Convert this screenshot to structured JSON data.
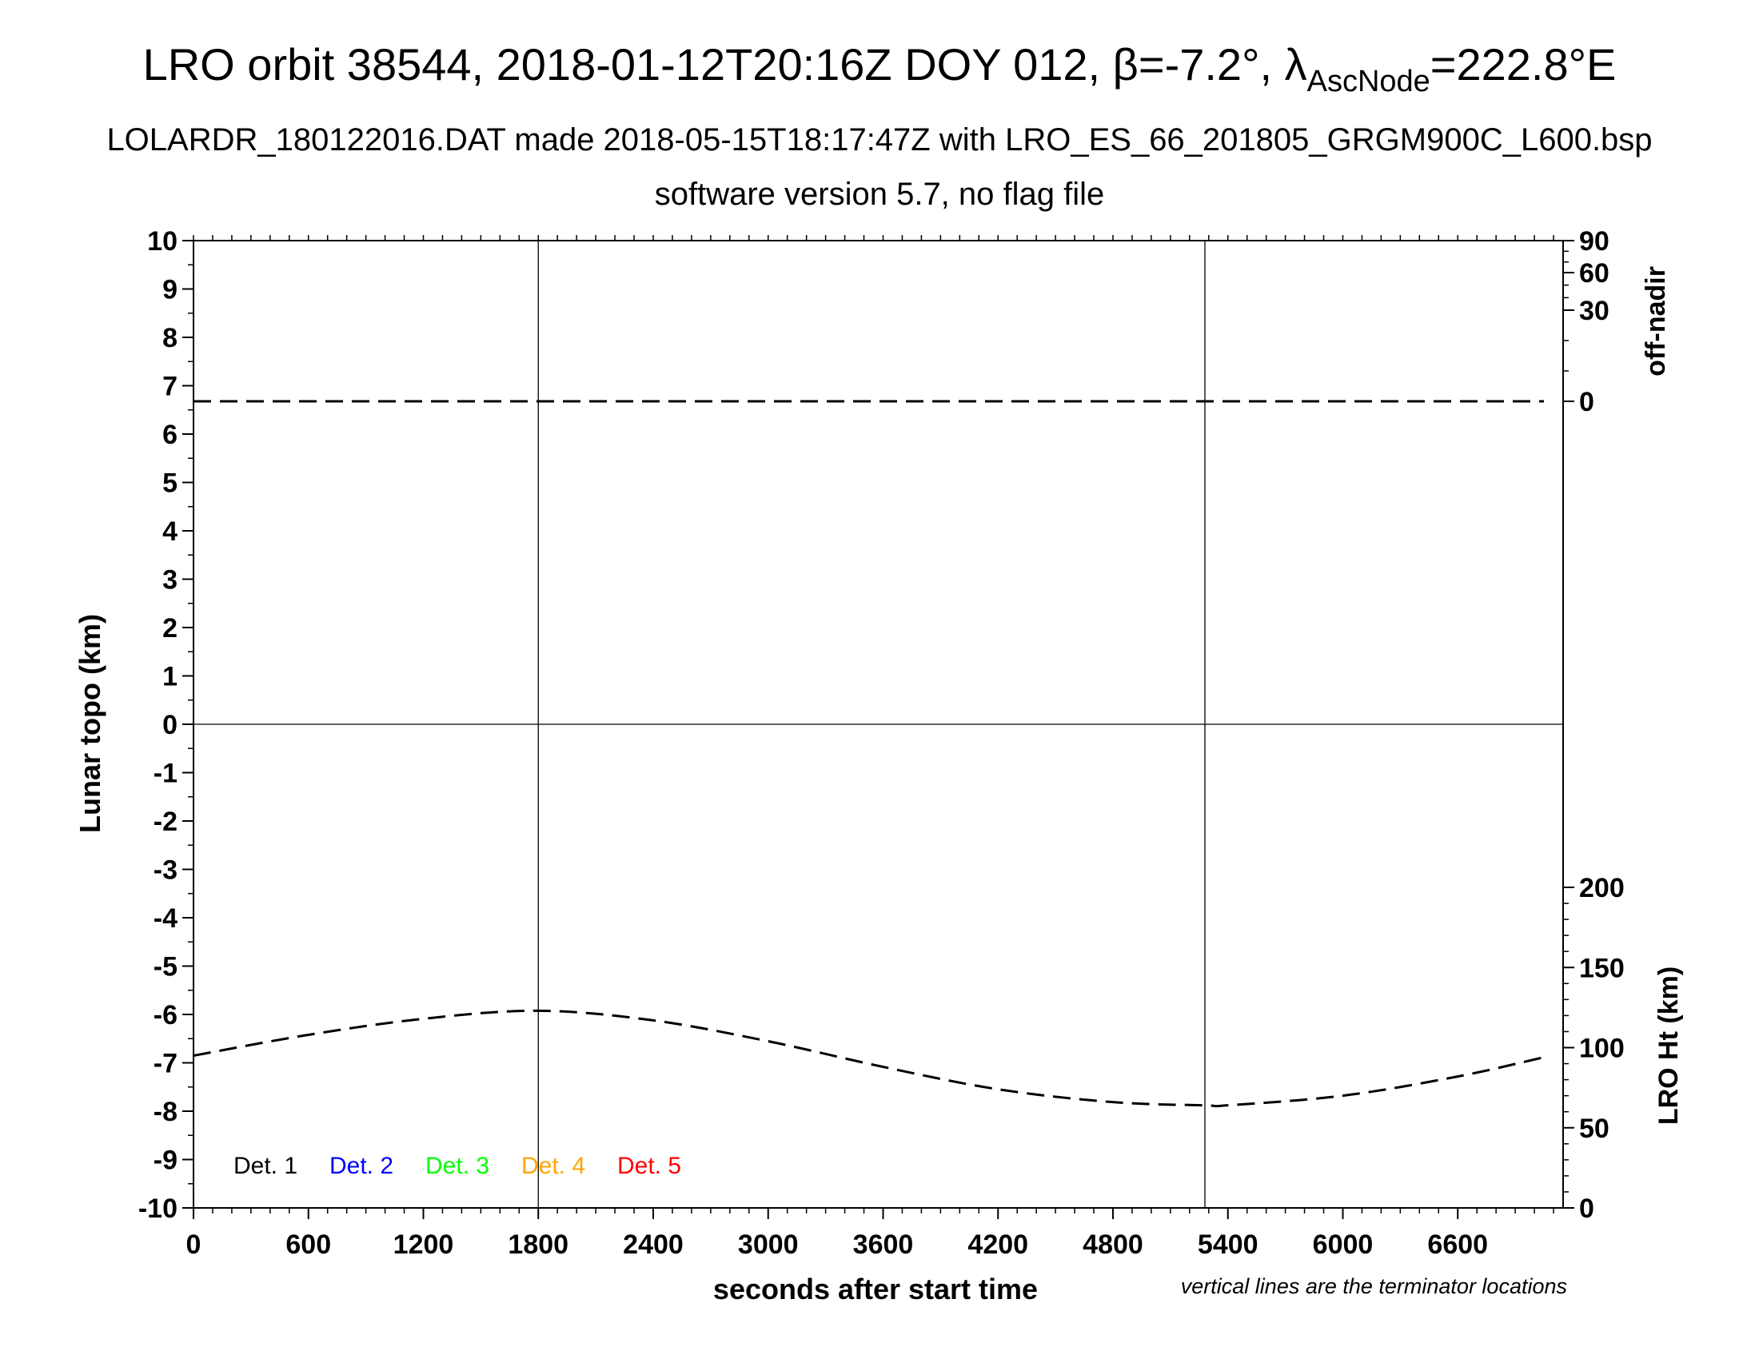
{
  "chart_data": {
    "type": "line",
    "title_parts": {
      "main": "LRO orbit 38544, 2018-01-12T20:16Z DOY 012, ",
      "beta_symbol": "β",
      "beta_value": "=-7.2°, ",
      "lambda_symbol": "λ",
      "lambda_subscript": "AscNode",
      "lambda_value": "=222.8°E"
    },
    "subtitle": "LOLARDR_180122016.DAT made 2018-05-15T18:17:47Z with LRO_ES_66_201805_GRGM900C_L600.bsp",
    "subtitle2": "software version 5.7, no flag file",
    "xlabel": "seconds after start time",
    "ylabel_left": "Lunar topo (km)",
    "ylabel_right_top": "off-nadir",
    "ylabel_right_bottom": "LRO Ht (km)",
    "note": "vertical lines are the terminator locations",
    "xlim": [
      0,
      7150
    ],
    "ylim": [
      -10,
      10
    ],
    "x_ticks": [
      0,
      600,
      1200,
      1800,
      2400,
      3000,
      3600,
      4200,
      4800,
      5400,
      6000,
      6600
    ],
    "y_ticks": [
      10,
      9,
      8,
      7,
      6,
      5,
      4,
      3,
      2,
      1,
      0,
      -1,
      -2,
      -3,
      -4,
      -5,
      -6,
      -7,
      -8,
      -9,
      -10
    ],
    "offnadir_axis": {
      "ticks": [
        90,
        60,
        30,
        0
      ]
    },
    "lro_ht_axis": {
      "range": [
        0,
        200
      ],
      "ticks": [
        200,
        150,
        100,
        50,
        0
      ]
    },
    "terminator_lines_x": [
      1800,
      5280
    ],
    "zero_line_y": 0,
    "series": [
      {
        "name": "off-nadir",
        "style": "dashed",
        "color": "#000000",
        "axis": "offnadir",
        "x": [
          0,
          7050
        ],
        "y": [
          0,
          0
        ]
      },
      {
        "name": "LRO Ht",
        "style": "dashed",
        "color": "#000000",
        "axis": "lro_ht",
        "x": [
          0,
          600,
          1200,
          1800,
          2400,
          3000,
          3600,
          4200,
          4800,
          5280,
          5400,
          6000,
          6600,
          7050
        ],
        "y": [
          95,
          108,
          118,
          123,
          117,
          104,
          88,
          74,
          66,
          64,
          64,
          70,
          82,
          94
        ]
      }
    ],
    "legend": [
      {
        "label": "Det. 1",
        "color": "#000000"
      },
      {
        "label": "Det. 2",
        "color": "#0000ff"
      },
      {
        "label": "Det. 3",
        "color": "#00ff00"
      },
      {
        "label": "Det. 4",
        "color": "#ffa500"
      },
      {
        "label": "Det. 5",
        "color": "#ff0000"
      }
    ],
    "legend_position": "bottom-left",
    "grid": false
  }
}
